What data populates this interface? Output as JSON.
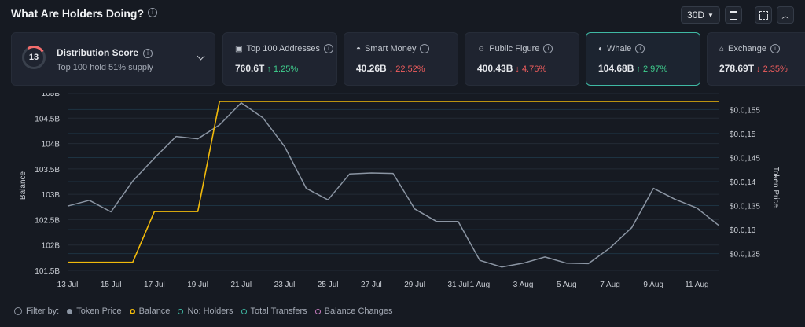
{
  "header": {
    "title": "What Are Holders Doing?",
    "range": "30D"
  },
  "distribution": {
    "score": "13",
    "title": "Distribution Score",
    "subtitle": "Top 100 hold 51% supply"
  },
  "metrics": [
    {
      "label": "Top 100 Addresses",
      "icon": "wallet-icon",
      "value": "760.6T",
      "change": "1.25%",
      "direction": "up"
    },
    {
      "label": "Smart Money",
      "icon": "smart-money-icon",
      "value": "40.26B",
      "change": "22.52%",
      "direction": "down"
    },
    {
      "label": "Public Figure",
      "icon": "public-figure-icon",
      "value": "400.43B",
      "change": "4.76%",
      "direction": "down"
    },
    {
      "label": "Whale",
      "icon": "whale-icon",
      "value": "104.68B",
      "change": "2.97%",
      "direction": "up"
    },
    {
      "label": "Exchange",
      "icon": "exchange-icon",
      "value": "278.69T",
      "change": "2.35%",
      "direction": "down"
    }
  ],
  "colors": {
    "token_price": "#8b95a3",
    "balance": "#f0b90b",
    "up": "#3fcf8e",
    "down": "#f05d5d",
    "active_border": "#3fb9a4"
  },
  "chart_data": {
    "type": "line",
    "x": [
      "13 Jul",
      "14 Jul",
      "15 Jul",
      "16 Jul",
      "17 Jul",
      "18 Jul",
      "19 Jul",
      "20 Jul",
      "21 Jul",
      "22 Jul",
      "23 Jul",
      "24 Jul",
      "25 Jul",
      "26 Jul",
      "27 Jul",
      "28 Jul",
      "29 Jul",
      "30 Jul",
      "31 Jul",
      "1 Aug",
      "2 Aug",
      "3 Aug",
      "4 Aug",
      "5 Aug",
      "6 Aug",
      "7 Aug",
      "8 Aug",
      "9 Aug",
      "10 Aug",
      "11 Aug",
      "12 Aug"
    ],
    "x_tick_labels": [
      "13 Jul",
      "15 Jul",
      "17 Jul",
      "19 Jul",
      "21 Jul",
      "23 Jul",
      "25 Jul",
      "27 Jul",
      "29 Jul",
      "31 Jul",
      "1 Aug",
      "3 Aug",
      "5 Aug",
      "7 Aug",
      "9 Aug",
      "11 Aug"
    ],
    "y_left": {
      "label": "Balance",
      "ticks": [
        "101.5B",
        "102B",
        "102.5B",
        "103B",
        "103.5B",
        "104B",
        "104.5B",
        "105B"
      ],
      "range": [
        101.5,
        105
      ]
    },
    "y_right": {
      "label": "Token Price",
      "ticks": [
        "$0.0,125",
        "$0.0,13",
        "$0.0,135",
        "$0.0,14",
        "$0.0,145",
        "$0.0,15",
        "$0.0,155"
      ],
      "range": [
        0.01215,
        0.01585
      ]
    },
    "grid": true,
    "legend_position": "bottom-left",
    "series": [
      {
        "name": "Token Price",
        "axis": "right",
        "values": [
          0.01349,
          0.01361,
          0.01337,
          0.01401,
          0.01449,
          0.01494,
          0.01489,
          0.01518,
          0.01564,
          0.01533,
          0.01473,
          0.01386,
          0.01362,
          0.01416,
          0.01418,
          0.01417,
          0.01343,
          0.01317,
          0.01317,
          0.01236,
          0.01222,
          0.0123,
          0.01243,
          0.0123,
          0.01229,
          0.01262,
          0.01304,
          0.01386,
          0.01363,
          0.01345,
          0.01309
        ]
      },
      {
        "name": "Balance",
        "axis": "left",
        "values": [
          101.66,
          101.66,
          101.66,
          101.66,
          102.66,
          102.66,
          102.66,
          104.83,
          104.83,
          104.83,
          104.83,
          104.83,
          104.83,
          104.83,
          104.83,
          104.83,
          104.83,
          104.83,
          104.83,
          104.83,
          104.83,
          104.83,
          104.83,
          104.83,
          104.83,
          104.83,
          104.83,
          104.83,
          104.83,
          104.83,
          104.83
        ]
      }
    ]
  },
  "legend": {
    "filter_label": "Filter by:",
    "items": [
      {
        "name": "Token Price",
        "color": "#8b95a3",
        "selected": true
      },
      {
        "name": "Balance",
        "color": "#f0b90b",
        "selected": true
      },
      {
        "name": "No: Holders",
        "color": "#3fb9a4",
        "selected": false
      },
      {
        "name": "Total Transfers",
        "color": "#3fb9a4",
        "selected": false
      },
      {
        "name": "Balance Changes",
        "color": "#c77dbf",
        "selected": false
      }
    ]
  }
}
